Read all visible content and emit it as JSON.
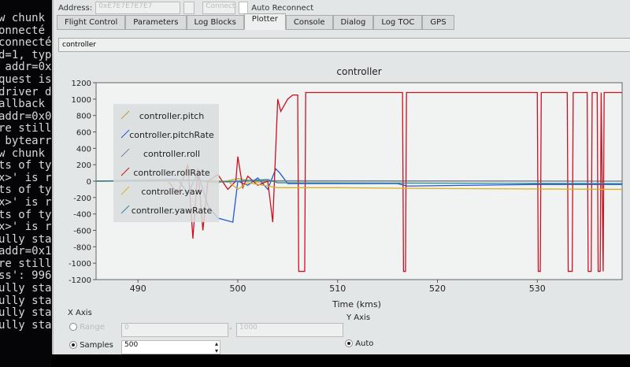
{
  "terminal": {
    "lines": [
      "w chunk o",
      "",
      "onnecté",
      "connecté",
      "d=1, type",
      " addr=0x0",
      "quest is",
      "driver do",
      "allback",
      "addr=0x0",
      "re still",
      " bytearra",
      "w chunk o",
      "ts of typ",
      "x>' is re",
      "ts of typ",
      "x>' is re",
      "ts of typ",
      "x>' is re",
      "ully sta",
      "addr=0x10",
      "re still",
      "ss': 9960",
      "",
      "ully sta",
      "ully sta",
      "ully sta",
      "ully sta"
    ]
  },
  "header": {
    "address_label": "Address:",
    "address_value": "0xE7E7E7E7E7",
    "connect_label": "Connect",
    "auto_reconnect": "Auto Reconnect"
  },
  "tabs": [
    {
      "label": "Flight Control"
    },
    {
      "label": "Parameters"
    },
    {
      "label": "Log Blocks"
    },
    {
      "label": "Plotter",
      "active": true
    },
    {
      "label": "Console"
    },
    {
      "label": "Dialog"
    },
    {
      "label": "Log TOC"
    },
    {
      "label": "GPS"
    }
  ],
  "plot_selector": {
    "value": "controller"
  },
  "chart_data": {
    "type": "line",
    "title": "controller",
    "xlabel": "Time (kms)",
    "ylabel": "",
    "xlim": [
      485.8,
      538.5
    ],
    "ylim": [
      -1200,
      1200
    ],
    "xticks": [
      490,
      500,
      510,
      520,
      530
    ],
    "yticks": [
      1200,
      1000,
      800,
      600,
      400,
      200,
      0,
      -200,
      -400,
      -600,
      -800,
      -1000,
      -1200
    ],
    "legend_position": "top-left",
    "series": [
      {
        "name": "controller.pitch",
        "color": "#b8a030",
        "x": [
          485.8,
          495,
          498,
          500,
          502,
          504,
          538.5
        ],
        "y": [
          0,
          10,
          -20,
          30,
          -10,
          0,
          0
        ]
      },
      {
        "name": "controller.pitchRate",
        "color": "#2255dd",
        "x": [
          485.8,
          494,
          495,
          496,
          497,
          498,
          499.5,
          500,
          501,
          502,
          503,
          503.8,
          504.2,
          505,
          516,
          517,
          530,
          538.5
        ],
        "y": [
          0,
          20,
          -150,
          100,
          -300,
          -450,
          -500,
          0,
          -50,
          40,
          -100,
          150,
          100,
          -30,
          -30,
          -60,
          -40,
          -40
        ]
      },
      {
        "name": "controller.roll",
        "color": "#7080a0",
        "x": [
          485.8,
          495,
          499,
          502,
          538.5
        ],
        "y": [
          0,
          15,
          -10,
          5,
          0
        ]
      },
      {
        "name": "controller.rollRate",
        "color": "#cc1020",
        "x": [
          485.8,
          493,
          494,
          495,
          495.5,
          496,
          496.5,
          497,
          498,
          499,
          499.8,
          500,
          500.5,
          501,
          502,
          503,
          503.5,
          504,
          504.3,
          505,
          505.5,
          506,
          506.1,
          506.7,
          506.8,
          516.5,
          516.6,
          516.8,
          516.9,
          530,
          530.1,
          530.3,
          530.4,
          533,
          533.1,
          533.5,
          533.6,
          535,
          535.1,
          535.4,
          535.5,
          536,
          536.1,
          536.3,
          536.4,
          536.6,
          536.7,
          538.5
        ],
        "y": [
          0,
          0,
          -150,
          200,
          -700,
          150,
          -600,
          0,
          80,
          -100,
          0,
          300,
          -80,
          60,
          -50,
          0,
          -500,
          1000,
          850,
          1000,
          1050,
          1050,
          -1100,
          -1100,
          1080,
          1080,
          -1100,
          -1100,
          1080,
          1080,
          -1100,
          -1100,
          1080,
          1080,
          -1100,
          -1100,
          1080,
          1080,
          -1100,
          -1100,
          1080,
          1080,
          -1100,
          -1100,
          1080,
          -1100,
          1080,
          1080
        ]
      },
      {
        "name": "controller.yaw",
        "color": "#d8b020",
        "x": [
          485.8,
          499,
          500,
          501,
          503,
          504,
          510,
          520,
          538.5
        ],
        "y": [
          0,
          0,
          -100,
          -20,
          -60,
          -80,
          -80,
          -90,
          -100
        ]
      },
      {
        "name": "controller.yawRate",
        "color": "#2a8a9a",
        "x": [
          485.8,
          495,
          499,
          503,
          504,
          538.5
        ],
        "y": [
          0,
          10,
          -5,
          20,
          -20,
          -30
        ]
      }
    ]
  },
  "x_axis": {
    "title": "X Axis",
    "range_label": "Range",
    "range_from": "0",
    "range_to": "1000",
    "samples_label": "Samples",
    "samples_value": "500",
    "mode": "Samples"
  },
  "y_axis": {
    "title": "Y Axis",
    "auto_label": "Auto",
    "mode": "Auto"
  }
}
